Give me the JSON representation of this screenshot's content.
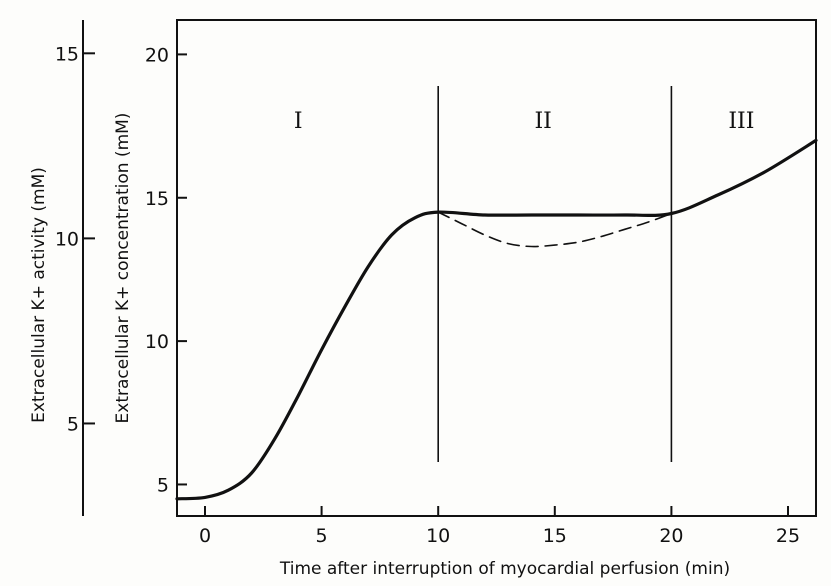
{
  "chart_data": {
    "type": "line",
    "title": "",
    "xlabel": "Time after interruption of myocardial perfusion (min)",
    "ylabel": "Extracellular K+ concentration (mM)",
    "ylabel_left": "Extracellular K+ activity (mM)",
    "xlim": [
      -1.2,
      26.2
    ],
    "ylim": [
      3.9,
      21.2
    ],
    "ylim_left": [
      2.5,
      15.9
    ],
    "xticks": [
      0,
      5,
      10,
      15,
      20,
      25
    ],
    "xtick_labels": [
      "0",
      "5",
      "10",
      "15",
      "20",
      "25"
    ],
    "yticks": [
      5,
      10,
      15,
      20
    ],
    "ytick_labels": [
      "5",
      "10",
      "15",
      "20"
    ],
    "yticks_left": [
      5,
      10,
      15
    ],
    "ytick_labels_left": [
      "5",
      "10",
      "15"
    ],
    "phase_boundaries": [
      10,
      20
    ],
    "phases": [
      {
        "label": "I",
        "x": 4
      },
      {
        "label": "II",
        "x": 14.5
      },
      {
        "label": "III",
        "x": 23
      }
    ],
    "series": [
      {
        "style": "solid",
        "x": [
          -1.2,
          0,
          1,
          2,
          3,
          4,
          5,
          6,
          7,
          8,
          9,
          10,
          12,
          14,
          16,
          18,
          20,
          22,
          24,
          26.2
        ],
        "y": [
          4.5,
          4.55,
          4.8,
          5.4,
          6.6,
          8.1,
          9.7,
          11.2,
          12.6,
          13.7,
          14.3,
          14.5,
          14.4,
          14.4,
          14.4,
          14.4,
          14.45,
          15.1,
          15.9,
          17.0
        ]
      },
      {
        "style": "dashed",
        "x": [
          10,
          11,
          12,
          13,
          14,
          15,
          16,
          17,
          18,
          19,
          20
        ],
        "y": [
          14.5,
          14.1,
          13.7,
          13.4,
          13.3,
          13.35,
          13.45,
          13.65,
          13.9,
          14.15,
          14.45
        ]
      }
    ],
    "grid": false,
    "legend": "none"
  }
}
